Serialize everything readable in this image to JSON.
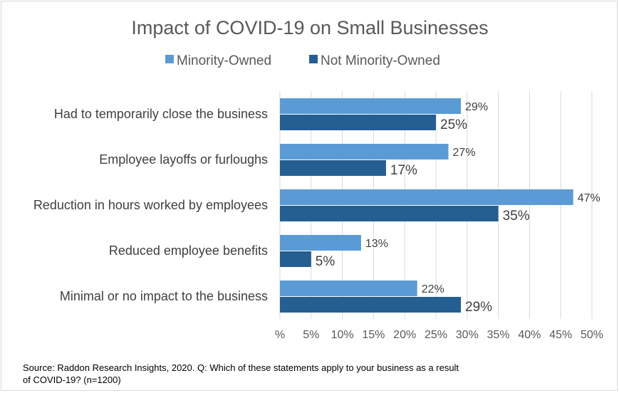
{
  "chart_data": {
    "type": "bar",
    "orientation": "horizontal",
    "title": "Impact of COVID-19 on Small Businesses",
    "categories": [
      "Had to temporarily close the business",
      "Employee layoffs or furloughs",
      "Reduction in hours worked by employees",
      "Reduced employee benefits",
      "Minimal or no impact to the business"
    ],
    "series": [
      {
        "name": "Minority-Owned",
        "color": "#5b9bd5",
        "values": [
          29,
          27,
          47,
          13,
          22
        ],
        "labels": [
          "29%",
          "27%",
          "47%",
          "13%",
          "22%"
        ]
      },
      {
        "name": "Not Minority-Owned",
        "color": "#255e91",
        "values": [
          25,
          17,
          35,
          5,
          29
        ],
        "labels": [
          "25%",
          "17%",
          "35%",
          "5%",
          "29%"
        ]
      }
    ],
    "xlim": [
      0,
      50
    ],
    "xticks": [
      "%",
      "5%",
      "10%",
      "15%",
      "20%",
      "25%",
      "30%",
      "35%",
      "40%",
      "45%",
      "50%"
    ],
    "grid": true,
    "legend": "top",
    "source": "Source: Raddon Research Insights, 2020. Q: Which of these statements apply to your business as a result of COVID-19? (n=1200)",
    "source_lines": [
      "Source: Raddon Research Insights, 2020. Q: Which of these statements apply to your business as a result",
      "of COVID-19? (n=1200)"
    ]
  }
}
